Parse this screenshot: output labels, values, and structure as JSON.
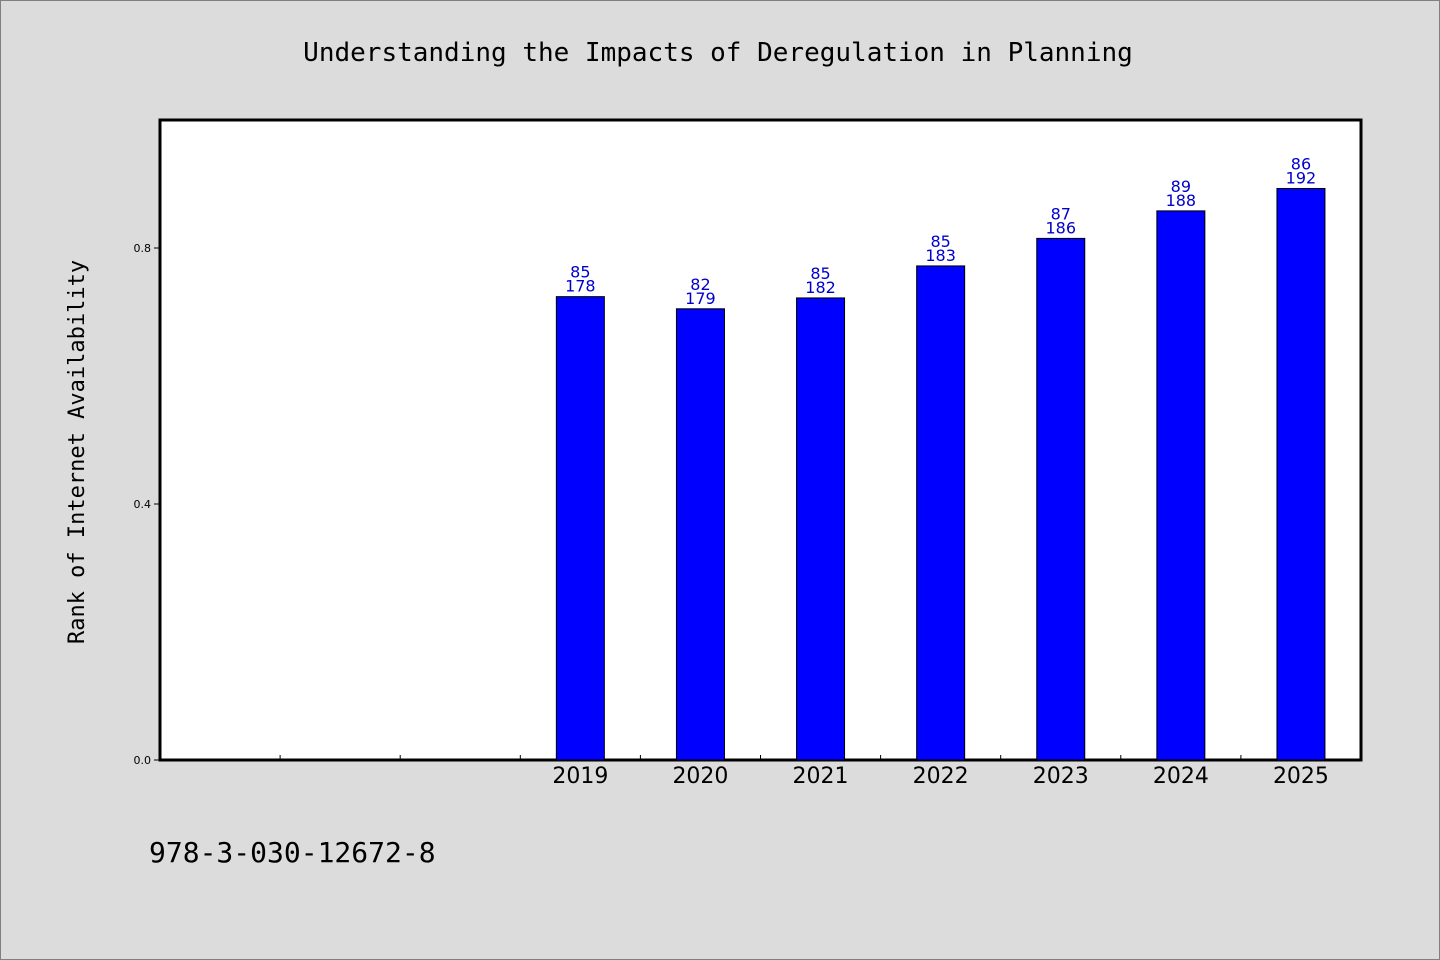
{
  "chart_data": {
    "type": "bar",
    "title": "Understanding the Impacts of Deregulation in Planning",
    "ylabel": "Rank of Internet Availability",
    "xlabel": "",
    "ylim": [
      0,
      1.0
    ],
    "yticks": [
      "0.0",
      "0.4",
      "0.8"
    ],
    "x_slots": [
      "",
      "",
      "",
      "2019",
      "2020",
      "2021",
      "2022",
      "2023",
      "2024",
      "2025"
    ],
    "categories": [
      "2019",
      "2020",
      "2021",
      "2022",
      "2023",
      "2024",
      "2025"
    ],
    "values": [
      0.724,
      0.705,
      0.722,
      0.772,
      0.815,
      0.858,
      0.893
    ],
    "label_top": [
      "85",
      "82",
      "85",
      "85",
      "87",
      "89",
      "86"
    ],
    "label_bottom": [
      "178",
      "179",
      "182",
      "183",
      "186",
      "188",
      "192"
    ],
    "bar_color": "#0000ff",
    "label_color": "#0000cc",
    "grid": false,
    "legend": "none"
  },
  "footer": {
    "isbn": "978-3-030-12672-8"
  }
}
